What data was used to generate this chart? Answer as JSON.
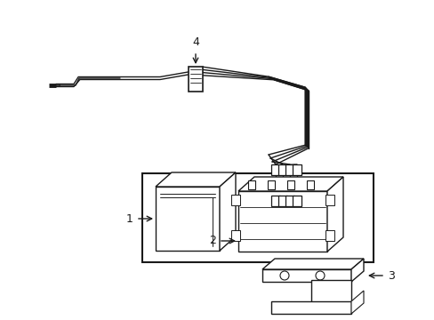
{
  "bg_color": "#ffffff",
  "line_color": "#1a1a1a",
  "lw": 1.0,
  "lw_thick": 1.5,
  "label_fs": 9
}
